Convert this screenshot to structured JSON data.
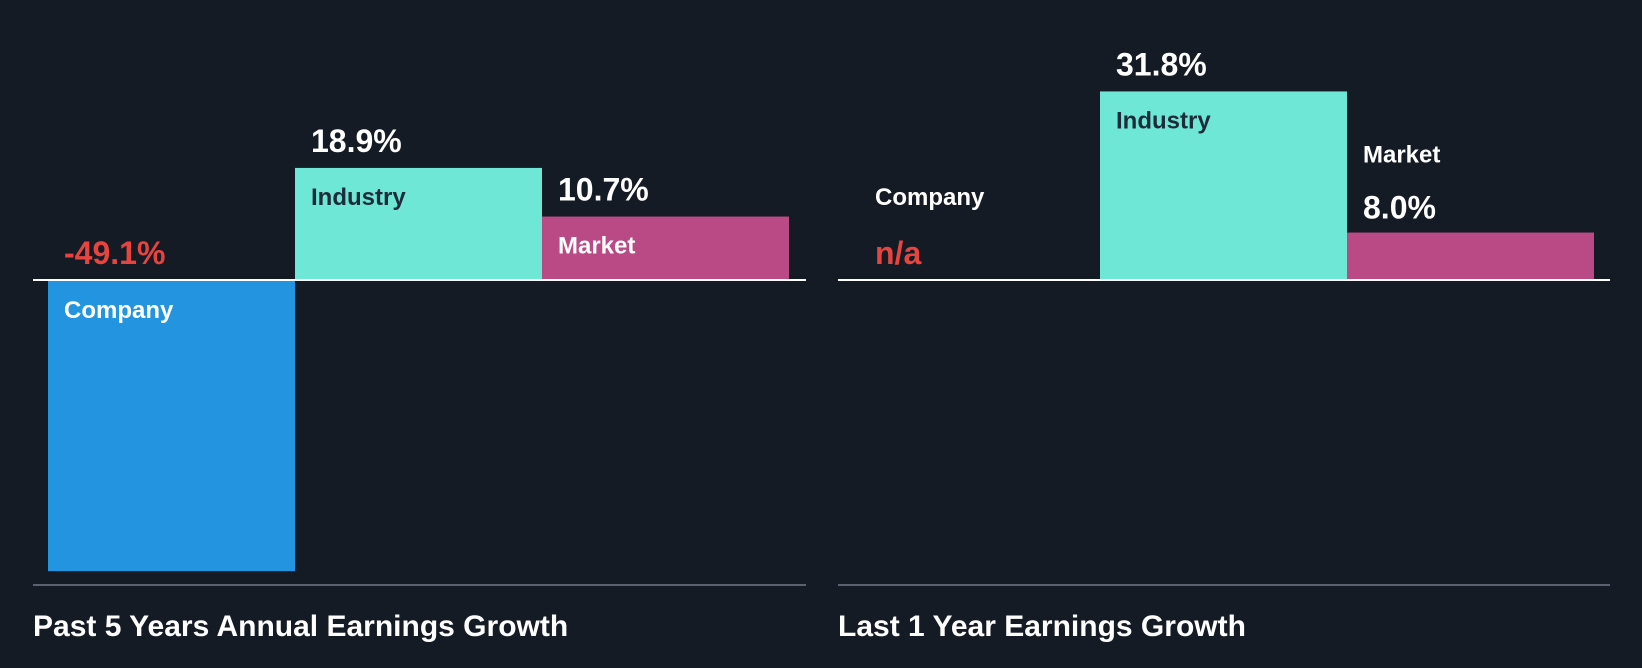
{
  "colors": {
    "background": "#151b24",
    "company": "#2394e0",
    "industry": "#6ee7d6",
    "market": "#b94a86",
    "negative_value": "#e8443f",
    "label_on_light": "#1d2b3a",
    "label_on_dark": "#ffffff",
    "baseline": "#ffffff",
    "bottom_axis": "#5a6270"
  },
  "chart_data": [
    {
      "type": "bar",
      "title": "Past 5 Years Annual Earnings Growth",
      "categories": [
        "Company",
        "Industry",
        "Market"
      ],
      "values": [
        -49.1,
        18.9,
        10.7
      ],
      "value_labels": [
        "-49.1%",
        "18.9%",
        "10.7%"
      ],
      "unit": "%",
      "ylim": [
        -49.1,
        18.9
      ],
      "grid": false,
      "legend": "none"
    },
    {
      "type": "bar",
      "title": "Last 1 Year Earnings Growth",
      "categories": [
        "Company",
        "Industry",
        "Market"
      ],
      "values": [
        null,
        31.8,
        8.0
      ],
      "value_labels": [
        "n/a",
        "31.8%",
        "8.0%"
      ],
      "unit": "%",
      "ylim": [
        -49.1,
        31.8
      ],
      "grid": false,
      "legend": "none"
    }
  ]
}
